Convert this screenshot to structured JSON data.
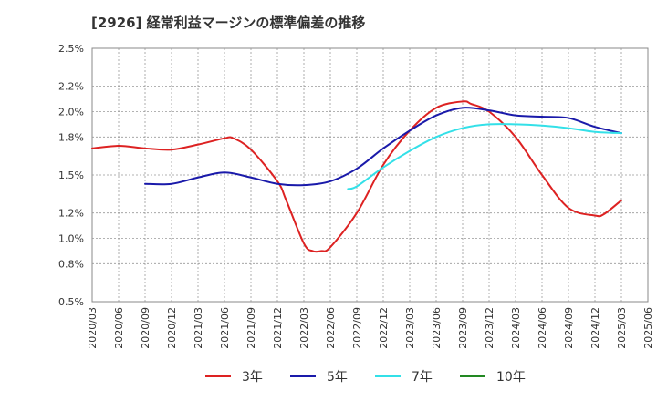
{
  "chart_data": {
    "type": "line",
    "title": "[2926]  経常利益マージンの標準偏差の推移",
    "xlabel": "",
    "ylabel": "",
    "x_ticks": [
      "2020/03",
      "2020/06",
      "2020/09",
      "2020/12",
      "2021/03",
      "2021/06",
      "2021/09",
      "2021/12",
      "2022/03",
      "2022/06",
      "2022/09",
      "2022/12",
      "2023/03",
      "2023/06",
      "2023/09",
      "2023/12",
      "2024/03",
      "2024/06",
      "2024/09",
      "2024/12",
      "2025/03",
      "2025/06"
    ],
    "y_ticks": [
      "0.5%",
      "0.8%",
      "1.0%",
      "1.2%",
      "1.5%",
      "1.8%",
      "2.0%",
      "2.2%",
      "2.5%"
    ],
    "ylim": [
      0.5,
      2.5
    ],
    "grid": true,
    "legend_position": "bottom",
    "series": [
      {
        "name": "3年",
        "color": "#dd2222",
        "x": [
          "2020/03",
          "2020/06",
          "2020/09",
          "2020/12",
          "2021/03",
          "2021/06",
          "2021/07",
          "2021/09",
          "2021/12",
          "2022/01",
          "2022/03",
          "2022/04",
          "2022/05",
          "2022/06",
          "2022/09",
          "2022/12",
          "2023/03",
          "2023/06",
          "2023/09",
          "2023/10",
          "2023/12",
          "2024/03",
          "2024/06",
          "2024/09",
          "2024/12",
          "2025/01",
          "2025/03"
        ],
        "y": [
          1.71,
          1.73,
          1.71,
          1.7,
          1.74,
          1.79,
          1.79,
          1.7,
          1.45,
          1.3,
          0.96,
          0.9,
          0.9,
          0.93,
          1.2,
          1.58,
          1.85,
          2.03,
          2.08,
          2.06,
          2.0,
          1.8,
          1.5,
          1.24,
          1.18,
          1.19,
          1.3
        ]
      },
      {
        "name": "5年",
        "color": "#1a1aaa",
        "x": [
          "2020/09",
          "2020/12",
          "2021/03",
          "2021/06",
          "2021/09",
          "2021/12",
          "2022/03",
          "2022/06",
          "2022/09",
          "2022/12",
          "2023/03",
          "2023/06",
          "2023/09",
          "2023/12",
          "2024/03",
          "2024/06",
          "2024/09",
          "2024/12",
          "2025/03"
        ],
        "y": [
          1.43,
          1.43,
          1.48,
          1.52,
          1.48,
          1.43,
          1.42,
          1.45,
          1.55,
          1.71,
          1.85,
          1.97,
          2.03,
          2.01,
          1.97,
          1.96,
          1.95,
          1.88,
          1.83
        ]
      },
      {
        "name": "7年",
        "color": "#33e0e8",
        "x": [
          "2022/08",
          "2022/09",
          "2022/12",
          "2023/03",
          "2023/06",
          "2023/09",
          "2023/12",
          "2024/03",
          "2024/06",
          "2024/09",
          "2024/12",
          "2025/03"
        ],
        "y": [
          1.39,
          1.41,
          1.56,
          1.69,
          1.8,
          1.87,
          1.9,
          1.9,
          1.89,
          1.87,
          1.84,
          1.83
        ]
      },
      {
        "name": "10年",
        "color": "#228822",
        "x": [],
        "y": []
      }
    ]
  }
}
